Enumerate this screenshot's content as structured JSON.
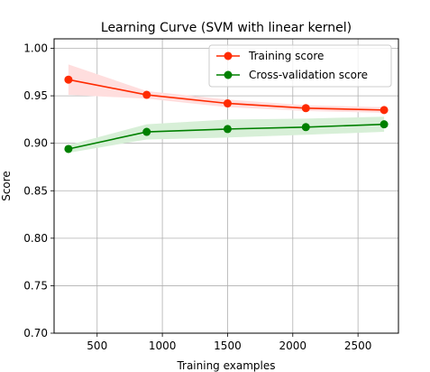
{
  "chart_data": {
    "type": "line",
    "title": "Learning Curve (SVM with linear kernel)",
    "xlabel": "Training examples",
    "ylabel": "Score",
    "xlim": [
      170,
      2810
    ],
    "ylim": [
      0.7,
      1.01
    ],
    "xticks": [
      500,
      1000,
      1500,
      2000,
      2500
    ],
    "yticks": [
      0.7,
      0.75,
      0.8,
      0.85,
      0.9,
      0.95,
      1.0
    ],
    "xtick_labels": [
      "500",
      "1000",
      "1500",
      "2000",
      "2500"
    ],
    "ytick_labels": [
      "0.70",
      "0.75",
      "0.80",
      "0.85",
      "0.90",
      "0.95",
      "1.00"
    ],
    "grid": true,
    "legend_position": "top-right",
    "x": [
      280,
      880,
      1500,
      2100,
      2700
    ],
    "series": [
      {
        "name": "Training score",
        "color": "#ff2a00",
        "band_color": "#ffdede",
        "values": [
          0.967,
          0.951,
          0.942,
          0.937,
          0.935
        ],
        "upper": [
          0.983,
          0.955,
          0.946,
          0.94,
          0.938
        ],
        "lower": [
          0.951,
          0.947,
          0.938,
          0.934,
          0.932
        ]
      },
      {
        "name": "Cross-validation score",
        "color": "#008000",
        "band_color": "#d7efd7",
        "values": [
          0.894,
          0.912,
          0.915,
          0.917,
          0.92
        ],
        "upper": [
          0.898,
          0.92,
          0.925,
          0.926,
          0.928
        ],
        "lower": [
          0.89,
          0.904,
          0.906,
          0.909,
          0.912
        ]
      }
    ]
  }
}
